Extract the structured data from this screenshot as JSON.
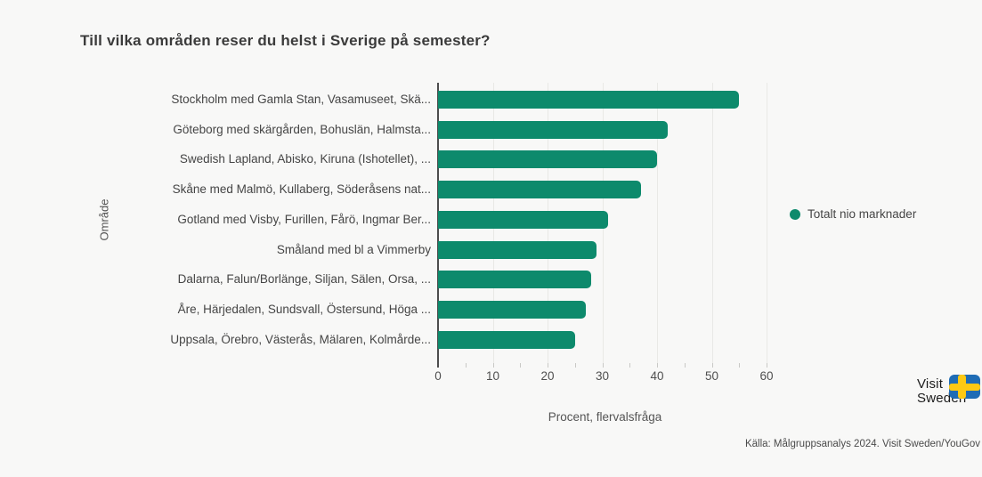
{
  "chart_data": {
    "type": "bar",
    "orientation": "horizontal",
    "title": "Till vilka områden reser du helst i Sverige på semester?",
    "xlabel": "Procent, flervalsfråga",
    "ylabel": "Område",
    "xlim": [
      0,
      60
    ],
    "xticks": [
      0,
      10,
      20,
      30,
      40,
      50,
      60
    ],
    "minor_tick_step": 5,
    "grid": true,
    "bar_color": "#0d8a6c",
    "legend": {
      "position": "right",
      "label": "Totalt nio marknader"
    },
    "categories": [
      "Stockholm med Gamla Stan, Vasamuseet, Skä...",
      "Göteborg med skärgården, Bohuslän, Halmsta...",
      "Swedish Lapland, Abisko, Kiruna (Ishotellet), ...",
      "Skåne med Malmö, Kullaberg, Söderåsens nat...",
      "Gotland med Visby, Furillen, Fårö, Ingmar Ber...",
      "Småland med bl a Vimmerby",
      "Dalarna, Falun/Borlänge, Siljan, Sälen, Orsa, ...",
      "Åre, Härjedalen, Sundsvall, Östersund, Höga ...",
      "Uppsala, Örebro, Västerås, Mälaren, Kolmårde..."
    ],
    "values": [
      55,
      42,
      40,
      37,
      31,
      29,
      28,
      27,
      25
    ]
  },
  "footer": {
    "source": "Källa: Målgruppsanalys 2024. Visit Sweden/YouGov"
  },
  "logo": {
    "line1": "Visit",
    "line2": "Sweden",
    "flag_blue": "#1f6cb5",
    "flag_yellow": "#fdc913"
  }
}
